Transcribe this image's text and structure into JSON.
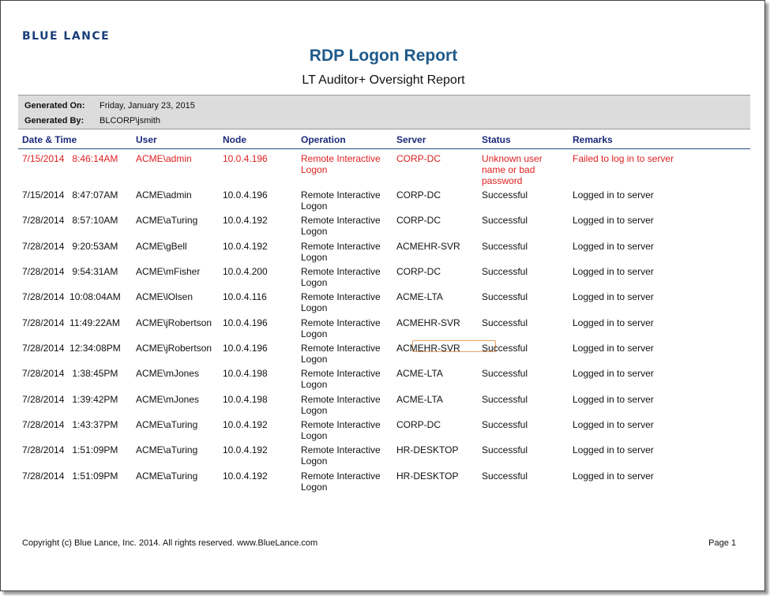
{
  "brand": "BLUE LANCE",
  "title": "RDP Logon Report",
  "subtitle": "LT Auditor+ Oversight Report",
  "generated": {
    "on_label": "Generated On:",
    "on_value": "Friday, January 23, 2015",
    "by_label": "Generated By:",
    "by_value": "BLCORP\\jsmith"
  },
  "columns": [
    "Date & Time",
    "User",
    "Node",
    "Operation",
    "Server",
    "Status",
    "Remarks"
  ],
  "rows": [
    {
      "datetime": "7/15/2014   8:46:14AM",
      "user": "ACME\\admin",
      "node": "10.0.4.196",
      "operation": "Remote Interactive Logon",
      "server": "CORP-DC",
      "status": "Unknown user name or bad password",
      "remarks": "Failed to log in to server"
    },
    {
      "datetime": "7/15/2014   8:47:07AM",
      "user": "ACME\\admin",
      "node": "10.0.4.196",
      "operation": "Remote Interactive Logon",
      "server": "CORP-DC",
      "status": "Successful",
      "remarks": "Logged in to server"
    },
    {
      "datetime": "7/28/2014   8:57:10AM",
      "user": "ACME\\aTuring",
      "node": "10.0.4.192",
      "operation": "Remote Interactive Logon",
      "server": "CORP-DC",
      "status": "Successful",
      "remarks": "Logged in to server"
    },
    {
      "datetime": "7/28/2014   9:20:53AM",
      "user": "ACME\\gBell",
      "node": "10.0.4.192",
      "operation": "Remote Interactive Logon",
      "server": "ACMEHR-SVR",
      "status": "Successful",
      "remarks": "Logged in to server"
    },
    {
      "datetime": "7/28/2014   9:54:31AM",
      "user": "ACME\\mFisher",
      "node": "10.0.4.200",
      "operation": "Remote Interactive Logon",
      "server": "CORP-DC",
      "status": "Successful",
      "remarks": "Logged in to server"
    },
    {
      "datetime": "7/28/2014  10:08:04AM",
      "user": "ACME\\lOlsen",
      "node": "10.0.4.116",
      "operation": "Remote Interactive Logon",
      "server": "ACME-LTA",
      "status": "Successful",
      "remarks": "Logged in to server"
    },
    {
      "datetime": "7/28/2014  11:49:22AM",
      "user": "ACME\\jRobertson",
      "node": "10.0.4.196",
      "operation": "Remote Interactive Logon",
      "server": "ACMEHR-SVR",
      "status": "Successful",
      "remarks": "Logged in to server"
    },
    {
      "datetime": "7/28/2014  12:34:08PM",
      "user": "ACME\\jRobertson",
      "node": "10.0.4.196",
      "operation": "Remote Interactive Logon",
      "server": "ACMEHR-SVR",
      "status": "Successful",
      "remarks": "Logged in to server"
    },
    {
      "datetime": "7/28/2014   1:38:45PM",
      "user": "ACME\\mJones",
      "node": "10.0.4.198",
      "operation": "Remote Interactive Logon",
      "server": "ACME-LTA",
      "status": "Successful",
      "remarks": "Logged in to server"
    },
    {
      "datetime": "7/28/2014   1:39:42PM",
      "user": "ACME\\mJones",
      "node": "10.0.4.198",
      "operation": "Remote Interactive Logon",
      "server": "ACME-LTA",
      "status": "Successful",
      "remarks": "Logged in to server"
    },
    {
      "datetime": "7/28/2014   1:43:37PM",
      "user": "ACME\\aTuring",
      "node": "10.0.4.192",
      "operation": "Remote Interactive Logon",
      "server": "CORP-DC",
      "status": "Successful",
      "remarks": "Logged in to server"
    },
    {
      "datetime": "7/28/2014   1:51:09PM",
      "user": "ACME\\aTuring",
      "node": "10.0.4.192",
      "operation": "Remote Interactive Logon",
      "server": "HR-DESKTOP",
      "status": "Successful",
      "remarks": "Logged in to server"
    },
    {
      "datetime": "7/28/2014   1:51:09PM",
      "user": "ACME\\aTuring",
      "node": "10.0.4.192",
      "operation": "Remote Interactive Logon",
      "server": "HR-DESKTOP",
      "status": "Successful",
      "remarks": "Logged in to server"
    }
  ],
  "footer": {
    "copyright": "Copyright (c) Blue Lance, Inc. 2014. All rights reserved. www.BlueLance.com",
    "page": "Page 1"
  },
  "colors": {
    "title": "#1f5a8a",
    "header_text": "#1c2a7a",
    "failed_row": "#e02020"
  }
}
